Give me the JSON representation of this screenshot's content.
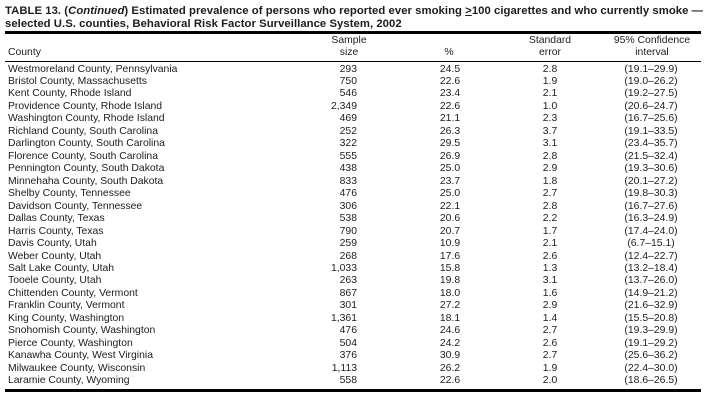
{
  "colors": {
    "text": "#1c1c1c",
    "rule": "#000000",
    "background": "#ffffff"
  },
  "title": {
    "prefix": "TABLE 13. (",
    "continued": "Continued",
    "after_paren": ") Estimated prevalence of persons who reported ever smoking ",
    "geq_symbol": ">",
    "line1_rest": "100 cigarettes and who currently smoke —",
    "line2": "selected U.S. counties, Behavioral Risk Factor Surveillance System, 2002"
  },
  "columns": {
    "county": "County",
    "sample_line1": "Sample",
    "sample_line2": "size",
    "pct": "%",
    "se_line1": "Standard",
    "se_line2": "error",
    "ci_line1": "95% Confidence",
    "ci_line2": "interval"
  },
  "rows": [
    {
      "county": "Westmoreland County, Pennsylvania",
      "sample_size": "293",
      "pct": "24.5",
      "se": "2.8",
      "ci": "(19.1–29.9)"
    },
    {
      "county": "Bristol County, Massachusetts",
      "sample_size": "750",
      "pct": "22.6",
      "se": "1.9",
      "ci": "(19.0–26.2)"
    },
    {
      "county": "Kent County, Rhode Island",
      "sample_size": "546",
      "pct": "23.4",
      "se": "2.1",
      "ci": "(19.2–27.5)"
    },
    {
      "county": "Providence County, Rhode Island",
      "sample_size": "2,349",
      "pct": "22.6",
      "se": "1.0",
      "ci": "(20.6–24.7)"
    },
    {
      "county": "Washington County, Rhode Island",
      "sample_size": "469",
      "pct": "21.1",
      "se": "2.3",
      "ci": "(16.7–25.6)"
    },
    {
      "county": "Richland County, South Carolina",
      "sample_size": "252",
      "pct": "26.3",
      "se": "3.7",
      "ci": "(19.1–33.5)"
    },
    {
      "county": "Darlington County, South Carolina",
      "sample_size": "322",
      "pct": "29.5",
      "se": "3.1",
      "ci": "(23.4–35.7)"
    },
    {
      "county": "Florence County, South Carolina",
      "sample_size": "555",
      "pct": "26.9",
      "se": "2.8",
      "ci": "(21.5–32.4)"
    },
    {
      "county": "Pennington County, South Dakota",
      "sample_size": "438",
      "pct": "25.0",
      "se": "2.9",
      "ci": "(19.3–30.6)"
    },
    {
      "county": "Minnehaha County, South Dakota",
      "sample_size": "833",
      "pct": "23.7",
      "se": "1.8",
      "ci": "(20.1–27.2)"
    },
    {
      "county": "Shelby County, Tennessee",
      "sample_size": "476",
      "pct": "25.0",
      "se": "2.7",
      "ci": "(19.8–30.3)"
    },
    {
      "county": "Davidson County, Tennessee",
      "sample_size": "306",
      "pct": "22.1",
      "se": "2.8",
      "ci": "(16.7–27.6)"
    },
    {
      "county": "Dallas County, Texas",
      "sample_size": "538",
      "pct": "20.6",
      "se": "2.2",
      "ci": "(16.3–24.9)"
    },
    {
      "county": "Harris County, Texas",
      "sample_size": "790",
      "pct": "20.7",
      "se": "1.7",
      "ci": "(17.4–24.0)"
    },
    {
      "county": "Davis County, Utah",
      "sample_size": "259",
      "pct": "10.9",
      "se": "2.1",
      "ci": "(6.7–15.1)"
    },
    {
      "county": "Weber County, Utah",
      "sample_size": "268",
      "pct": "17.6",
      "se": "2.6",
      "ci": "(12.4–22.7)"
    },
    {
      "county": "Salt Lake County, Utah",
      "sample_size": "1,033",
      "pct": "15.8",
      "se": "1.3",
      "ci": "(13.2–18.4)"
    },
    {
      "county": "Tooele County, Utah",
      "sample_size": "263",
      "pct": "19.8",
      "se": "3.1",
      "ci": "(13.7–26.0)"
    },
    {
      "county": "Chittenden County, Vermont",
      "sample_size": "867",
      "pct": "18.0",
      "se": "1.6",
      "ci": "(14.9–21.2)"
    },
    {
      "county": "Franklin County, Vermont",
      "sample_size": "301",
      "pct": "27.2",
      "se": "2.9",
      "ci": "(21.6–32.9)"
    },
    {
      "county": "King County, Washington",
      "sample_size": "1,361",
      "pct": "18.1",
      "se": "1.4",
      "ci": "(15.5–20.8)"
    },
    {
      "county": "Snohomish County, Washington",
      "sample_size": "476",
      "pct": "24.6",
      "se": "2.7",
      "ci": "(19.3–29.9)"
    },
    {
      "county": "Pierce County, Washington",
      "sample_size": "504",
      "pct": "24.2",
      "se": "2.6",
      "ci": "(19.1–29.2)"
    },
    {
      "county": "Kanawha County, West Virginia",
      "sample_size": "376",
      "pct": "30.9",
      "se": "2.7",
      "ci": "(25.6–36.2)"
    },
    {
      "county": "Milwaukee County, Wisconsin",
      "sample_size": "1,113",
      "pct": "26.2",
      "se": "1.9",
      "ci": "(22.4–30.0)"
    },
    {
      "county": "Laramie County, Wyoming",
      "sample_size": "558",
      "pct": "22.6",
      "se": "2.0",
      "ci": "(18.6–26.5)"
    }
  ]
}
